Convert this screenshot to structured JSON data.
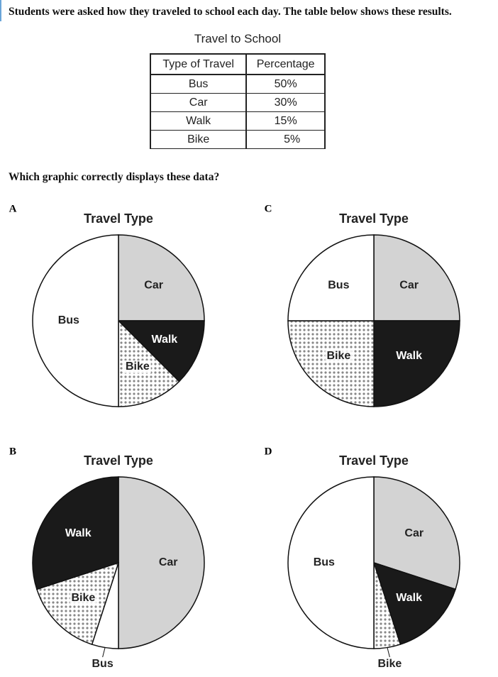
{
  "intro": "Students were asked how they traveled to school each day. The table below shows these results.",
  "table": {
    "title": "Travel to School",
    "headers": [
      "Type of Travel",
      "Percentage"
    ],
    "rows": [
      [
        "Bus",
        "50%"
      ],
      [
        "Car",
        "30%"
      ],
      [
        "Walk",
        "15%"
      ],
      [
        "Bike",
        "5%"
      ]
    ]
  },
  "question": "Which graphic correctly displays these data?",
  "options": [
    {
      "letter": "A",
      "title": "Travel Type",
      "slices": [
        {
          "label": "Car",
          "value": 25,
          "fill": "gray"
        },
        {
          "label": "Walk",
          "value": 12.5,
          "fill": "black"
        },
        {
          "label": "Bike",
          "value": 12.5,
          "fill": "dots"
        },
        {
          "label": "Bus",
          "value": 50,
          "fill": "white"
        }
      ]
    },
    {
      "letter": "C",
      "title": "Travel Type",
      "slices": [
        {
          "label": "Car",
          "value": 25,
          "fill": "gray"
        },
        {
          "label": "Walk",
          "value": 25,
          "fill": "black"
        },
        {
          "label": "Bike",
          "value": 25,
          "fill": "dots"
        },
        {
          "label": "Bus",
          "value": 25,
          "fill": "white"
        }
      ]
    },
    {
      "letter": "B",
      "title": "Travel Type",
      "slices": [
        {
          "label": "Car",
          "value": 50,
          "fill": "gray"
        },
        {
          "label": "Bus",
          "value": 5,
          "fill": "white"
        },
        {
          "label": "Bike",
          "value": 15,
          "fill": "dots"
        },
        {
          "label": "Walk",
          "value": 30,
          "fill": "black"
        }
      ]
    },
    {
      "letter": "D",
      "title": "Travel Type",
      "slices": [
        {
          "label": "Car",
          "value": 30,
          "fill": "gray"
        },
        {
          "label": "Walk",
          "value": 15,
          "fill": "black"
        },
        {
          "label": "Bike",
          "value": 5,
          "fill": "dots"
        },
        {
          "label": "Bus",
          "value": 50,
          "fill": "white"
        }
      ]
    }
  ]
}
